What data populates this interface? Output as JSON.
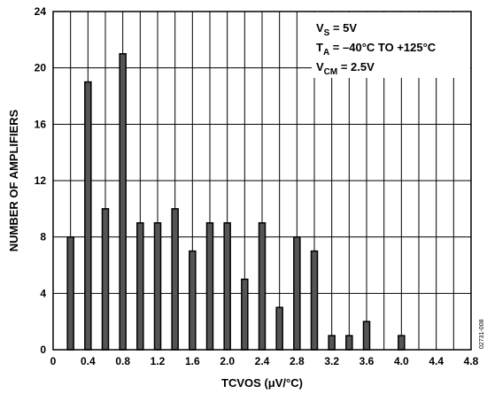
{
  "chart_data": {
    "type": "bar",
    "x": [
      0.2,
      0.4,
      0.6,
      0.8,
      1.0,
      1.2,
      1.4,
      1.6,
      1.8,
      2.0,
      2.2,
      2.4,
      2.6,
      2.8,
      3.0,
      3.2,
      3.4,
      3.6,
      4.0
    ],
    "values": [
      8,
      19,
      10,
      21,
      9,
      9,
      10,
      7,
      9,
      9,
      5,
      9,
      3,
      8,
      7,
      1,
      1,
      2,
      1
    ],
    "xlabel": "TCVOS (μV/°C)",
    "ylabel": "NUMBER OF AMPLIFIERS",
    "xlim": [
      0,
      4.8
    ],
    "ylim": [
      0,
      24
    ],
    "x_ticks": [
      "0",
      "0.4",
      "0.8",
      "1.2",
      "1.6",
      "2.0",
      "2.4",
      "2.8",
      "3.2",
      "3.6",
      "4.0",
      "4.4",
      "4.8"
    ],
    "y_ticks": [
      "0",
      "4",
      "8",
      "12",
      "16",
      "20",
      "24"
    ],
    "grid": true,
    "bar_color": "#555555",
    "annotations": [
      {
        "main": "V",
        "sub": "S",
        "rest": " = 5V"
      },
      {
        "main": "T",
        "sub": "A",
        "rest": " = –40°C TO +125°C"
      },
      {
        "main": "V",
        "sub": "CM",
        "rest": " = 2.5V"
      }
    ],
    "legend_placement": "top-right",
    "figure_id": "02731-008"
  }
}
